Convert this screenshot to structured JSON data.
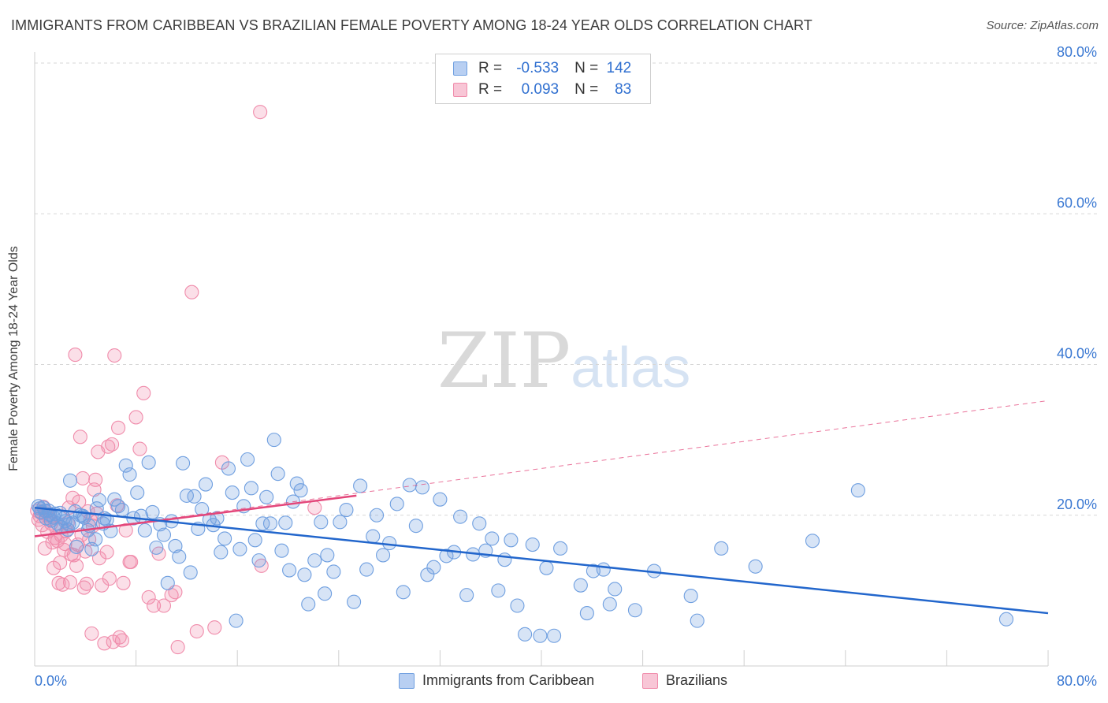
{
  "title": "IMMIGRANTS FROM CARIBBEAN VS BRAZILIAN FEMALE POVERTY AMONG 18-24 YEAR OLDS CORRELATION CHART",
  "source": "Source: ZipAtlas.com",
  "watermark": {
    "zip": "ZIP",
    "atlas": "atlas"
  },
  "legend": {
    "series1": {
      "r_label": "R =",
      "r_value": "-0.533",
      "n_label": "N =",
      "n_value": "142"
    },
    "series2": {
      "r_label": "R =",
      "r_value": "0.093",
      "n_label": "N =",
      "n_value": "83"
    }
  },
  "bottom_legend": {
    "series1": "Immigrants from Caribbean",
    "series2": "Brazilians"
  },
  "colors": {
    "blue": "#6f9fe0",
    "blue_line": "#2266cc",
    "pink": "#f08cab",
    "pink_line": "#e3467a",
    "axis_text": "#3a78d2"
  },
  "chart_data": {
    "type": "scatter",
    "title": "IMMIGRANTS FROM CARIBBEAN VS BRAZILIAN FEMALE POVERTY AMONG 18-24 YEAR OLDS CORRELATION CHART",
    "xlabel": "",
    "ylabel": "Female Poverty Among 18-24 Year Olds",
    "xlim": [
      0,
      80
    ],
    "ylim": [
      0,
      80
    ],
    "x_tick_labels": [
      "0.0%",
      "80.0%"
    ],
    "y_ticks": [
      20,
      40,
      60,
      80
    ],
    "y_tick_labels": [
      "20.0%",
      "40.0%",
      "60.0%",
      "80.0%"
    ],
    "grid": true,
    "legend_position": "top-center",
    "series": [
      {
        "name": "Immigrants from Caribbean",
        "color": "#6f9fe0",
        "trend": {
          "x": [
            0,
            80
          ],
          "y": [
            21.0,
            7.0
          ]
        },
        "points": [
          [
            0.3,
            21.2
          ],
          [
            0.5,
            20.4
          ],
          [
            0.7,
            21.0
          ],
          [
            0.9,
            19.6
          ],
          [
            1.1,
            20.6
          ],
          [
            1.3,
            19.3
          ],
          [
            1.6,
            20.2
          ],
          [
            1.8,
            18.9
          ],
          [
            2.1,
            18.4
          ],
          [
            2.3,
            19.6
          ],
          [
            2.6,
            18.1
          ],
          [
            2.8,
            24.6
          ],
          [
            3.0,
            19.0
          ],
          [
            3.3,
            15.8
          ],
          [
            3.6,
            20.0
          ],
          [
            3.9,
            19.7
          ],
          [
            4.2,
            18.0
          ],
          [
            4.5,
            15.5
          ],
          [
            4.8,
            16.8
          ],
          [
            5.1,
            22.0
          ],
          [
            5.4,
            18.9
          ],
          [
            5.7,
            19.4
          ],
          [
            6.0,
            17.9
          ],
          [
            6.3,
            22.1
          ],
          [
            6.6,
            21.2
          ],
          [
            6.9,
            20.7
          ],
          [
            7.2,
            26.6
          ],
          [
            7.5,
            25.4
          ],
          [
            7.8,
            19.6
          ],
          [
            8.1,
            23.0
          ],
          [
            8.4,
            19.9
          ],
          [
            8.7,
            18.0
          ],
          [
            9.0,
            27.0
          ],
          [
            9.3,
            20.4
          ],
          [
            9.6,
            15.7
          ],
          [
            9.9,
            18.8
          ],
          [
            10.2,
            17.4
          ],
          [
            10.5,
            11.0
          ],
          [
            10.8,
            19.2
          ],
          [
            11.1,
            15.9
          ],
          [
            11.4,
            14.5
          ],
          [
            11.7,
            26.9
          ],
          [
            12.0,
            22.6
          ],
          [
            12.3,
            12.4
          ],
          [
            12.6,
            22.5
          ],
          [
            12.9,
            18.2
          ],
          [
            13.2,
            20.8
          ],
          [
            13.5,
            24.1
          ],
          [
            13.8,
            19.4
          ],
          [
            14.1,
            18.7
          ],
          [
            14.4,
            19.6
          ],
          [
            14.7,
            15.1
          ],
          [
            15.0,
            16.9
          ],
          [
            15.3,
            26.2
          ],
          [
            15.6,
            23.0
          ],
          [
            15.9,
            6.0
          ],
          [
            16.2,
            15.5
          ],
          [
            16.5,
            21.2
          ],
          [
            16.8,
            27.4
          ],
          [
            17.1,
            23.6
          ],
          [
            17.4,
            16.7
          ],
          [
            17.7,
            14.0
          ],
          [
            18.0,
            18.9
          ],
          [
            18.3,
            22.4
          ],
          [
            18.6,
            18.9
          ],
          [
            18.9,
            30.0
          ],
          [
            19.2,
            25.5
          ],
          [
            19.5,
            15.3
          ],
          [
            19.8,
            19.0
          ],
          [
            20.1,
            12.7
          ],
          [
            20.4,
            21.8
          ],
          [
            20.7,
            24.2
          ],
          [
            21.0,
            23.3
          ],
          [
            21.3,
            12.1
          ],
          [
            21.6,
            8.2
          ],
          [
            22.1,
            14.0
          ],
          [
            22.6,
            19.1
          ],
          [
            22.9,
            9.6
          ],
          [
            23.1,
            14.7
          ],
          [
            23.6,
            12.5
          ],
          [
            24.1,
            19.1
          ],
          [
            24.6,
            20.7
          ],
          [
            25.2,
            8.5
          ],
          [
            25.7,
            23.9
          ],
          [
            26.2,
            12.8
          ],
          [
            26.7,
            17.2
          ],
          [
            27.0,
            20.0
          ],
          [
            27.5,
            14.7
          ],
          [
            28.0,
            16.3
          ],
          [
            28.6,
            21.5
          ],
          [
            29.1,
            9.8
          ],
          [
            29.6,
            24.0
          ],
          [
            30.1,
            18.6
          ],
          [
            30.6,
            23.7
          ],
          [
            31.0,
            12.1
          ],
          [
            31.5,
            13.1
          ],
          [
            32.0,
            22.1
          ],
          [
            32.5,
            14.6
          ],
          [
            33.1,
            15.1
          ],
          [
            33.6,
            19.8
          ],
          [
            34.1,
            9.4
          ],
          [
            34.6,
            14.8
          ],
          [
            35.1,
            18.9
          ],
          [
            35.6,
            15.3
          ],
          [
            36.1,
            16.9
          ],
          [
            36.6,
            10.0
          ],
          [
            37.1,
            14.1
          ],
          [
            37.6,
            16.7
          ],
          [
            38.1,
            8.0
          ],
          [
            38.7,
            4.2
          ],
          [
            39.3,
            16.1
          ],
          [
            39.9,
            4.0
          ],
          [
            40.4,
            13.0
          ],
          [
            41.0,
            4.0
          ],
          [
            41.5,
            15.6
          ],
          [
            43.1,
            10.7
          ],
          [
            43.6,
            7.0
          ],
          [
            44.1,
            12.6
          ],
          [
            44.9,
            12.8
          ],
          [
            45.4,
            8.2
          ],
          [
            45.8,
            10.2
          ],
          [
            47.4,
            7.4
          ],
          [
            48.9,
            12.6
          ],
          [
            51.8,
            9.3
          ],
          [
            52.3,
            6.0
          ],
          [
            54.2,
            15.6
          ],
          [
            56.9,
            13.2
          ],
          [
            61.4,
            16.6
          ],
          [
            65.0,
            23.3
          ],
          [
            76.7,
            6.2
          ],
          [
            0.4,
            20.9
          ],
          [
            0.8,
            20.6
          ],
          [
            1.2,
            20.1
          ],
          [
            1.5,
            19.7
          ],
          [
            2.0,
            20.3
          ],
          [
            2.4,
            19.2
          ],
          [
            2.7,
            18.8
          ],
          [
            3.2,
            20.5
          ],
          [
            3.8,
            19.9
          ],
          [
            4.3,
            18.6
          ],
          [
            4.9,
            20.9
          ],
          [
            5.5,
            19.6
          ]
        ]
      },
      {
        "name": "Brazilians",
        "color": "#f08cab",
        "trend": {
          "x": [
            0,
            25.4
          ],
          "y": [
            17.2,
            22.6
          ]
        },
        "trend_extended": {
          "x": [
            0,
            80
          ],
          "y": [
            17.2,
            35.2
          ]
        },
        "points": [
          [
            0.2,
            20.6
          ],
          [
            0.3,
            19.4
          ],
          [
            0.4,
            19.9
          ],
          [
            0.5,
            20.3
          ],
          [
            0.6,
            18.7
          ],
          [
            0.7,
            21.1
          ],
          [
            0.8,
            15.6
          ],
          [
            0.9,
            20.5
          ],
          [
            1.0,
            17.8
          ],
          [
            1.1,
            20.0
          ],
          [
            1.2,
            19.5
          ],
          [
            1.3,
            18.9
          ],
          [
            1.4,
            16.4
          ],
          [
            1.5,
            13.0
          ],
          [
            1.6,
            17.0
          ],
          [
            1.7,
            18.3
          ],
          [
            1.8,
            16.6
          ],
          [
            1.9,
            11.0
          ],
          [
            2.0,
            13.7
          ],
          [
            2.1,
            17.3
          ],
          [
            2.2,
            10.8
          ],
          [
            2.3,
            15.4
          ],
          [
            2.4,
            16.2
          ],
          [
            2.5,
            17.9
          ],
          [
            2.6,
            19.0
          ],
          [
            2.7,
            21.0
          ],
          [
            2.8,
            11.1
          ],
          [
            2.9,
            14.8
          ],
          [
            3.0,
            22.3
          ],
          [
            3.1,
            14.7
          ],
          [
            3.2,
            41.3
          ],
          [
            3.3,
            13.3
          ],
          [
            3.4,
            16.1
          ],
          [
            3.5,
            21.8
          ],
          [
            3.6,
            30.4
          ],
          [
            3.7,
            17.4
          ],
          [
            3.8,
            24.9
          ],
          [
            3.9,
            10.4
          ],
          [
            4.0,
            15.2
          ],
          [
            4.1,
            10.9
          ],
          [
            4.2,
            20.5
          ],
          [
            4.3,
            16.8
          ],
          [
            4.4,
            19.4
          ],
          [
            4.5,
            4.3
          ],
          [
            4.6,
            18.6
          ],
          [
            4.7,
            23.4
          ],
          [
            4.8,
            24.7
          ],
          [
            4.9,
            20.2
          ],
          [
            5.0,
            28.4
          ],
          [
            5.1,
            14.3
          ],
          [
            5.3,
            10.7
          ],
          [
            5.5,
            3.0
          ],
          [
            5.7,
            15.1
          ],
          [
            5.8,
            29.1
          ],
          [
            5.9,
            11.6
          ],
          [
            6.1,
            29.4
          ],
          [
            6.2,
            3.2
          ],
          [
            6.3,
            41.2
          ],
          [
            6.5,
            21.3
          ],
          [
            6.6,
            31.6
          ],
          [
            6.7,
            3.8
          ],
          [
            6.9,
            3.4
          ],
          [
            7.0,
            11.0
          ],
          [
            7.2,
            18.0
          ],
          [
            7.5,
            13.8
          ],
          [
            7.6,
            13.8
          ],
          [
            8.0,
            33.0
          ],
          [
            8.3,
            28.8
          ],
          [
            8.6,
            36.2
          ],
          [
            9.0,
            9.1
          ],
          [
            9.4,
            8.0
          ],
          [
            9.8,
            14.9
          ],
          [
            10.2,
            8.0
          ],
          [
            10.8,
            9.4
          ],
          [
            11.1,
            9.8
          ],
          [
            11.3,
            2.5
          ],
          [
            12.4,
            49.6
          ],
          [
            12.8,
            4.6
          ],
          [
            14.2,
            5.1
          ],
          [
            14.8,
            27.0
          ],
          [
            17.9,
            13.3
          ],
          [
            22.1,
            21.0
          ],
          [
            17.8,
            73.5
          ]
        ]
      }
    ]
  }
}
